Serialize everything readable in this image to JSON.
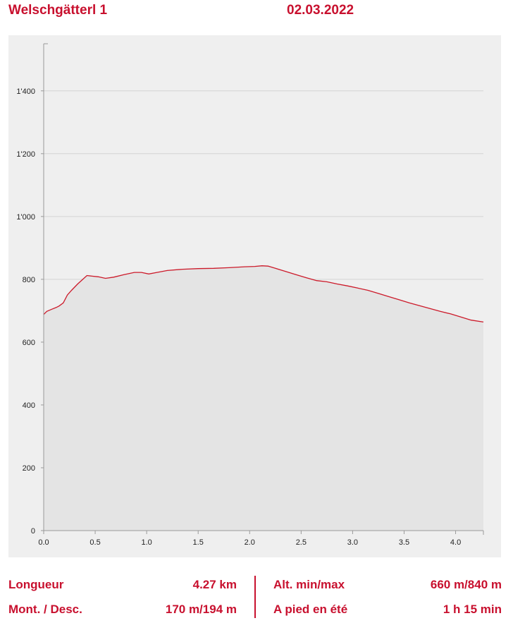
{
  "header": {
    "route_name": "Welschgätterl 1",
    "date": "02.03.2022"
  },
  "colors": {
    "accent": "#c8102e",
    "line": "#cc1a2a",
    "area_fill": "#e4e4e4",
    "plot_background": "#efefef",
    "grid": "#d3d3d3"
  },
  "chart_data": {
    "type": "area",
    "title": "",
    "xlabel": "",
    "ylabel": "",
    "xlim": [
      0,
      4.27
    ],
    "ylim": [
      0,
      1550
    ],
    "x_ticks": [
      "0.0",
      "0.5",
      "1.0",
      "1.5",
      "2.0",
      "2.5",
      "3.0",
      "3.5",
      "4.0"
    ],
    "y_ticks": [
      "0",
      "200",
      "400",
      "600",
      "800",
      "1'000",
      "1'200",
      "1'400"
    ],
    "grid": true,
    "series": [
      {
        "x": [
          0,
          0.03,
          0.08,
          0.12,
          0.15,
          0.19,
          0.23,
          0.27,
          0.33,
          0.38,
          0.42,
          0.47,
          0.53,
          0.6,
          0.68,
          0.78,
          0.88,
          0.95,
          1.02,
          1.1,
          1.2,
          1.35,
          1.5,
          1.65,
          1.8,
          1.95,
          2.05,
          2.12,
          2.18,
          2.25,
          2.35,
          2.45,
          2.55,
          2.65,
          2.75,
          2.85,
          2.95,
          3.05,
          3.15,
          3.25,
          3.35,
          3.45,
          3.55,
          3.65,
          3.75,
          3.85,
          3.95,
          4.05,
          4.15,
          4.27
        ],
        "y": [
          688,
          698,
          705,
          710,
          715,
          725,
          750,
          765,
          785,
          800,
          812,
          810,
          808,
          803,
          807,
          815,
          822,
          822,
          817,
          822,
          828,
          832,
          834,
          835,
          837,
          840,
          841,
          843,
          842,
          835,
          825,
          815,
          805,
          796,
          792,
          785,
          779,
          772,
          765,
          755,
          745,
          735,
          725,
          716,
          707,
          698,
          690,
          680,
          670,
          664
        ]
      }
    ]
  },
  "stats": {
    "length_label": "Longueur",
    "length_value": "4.27 km",
    "climb_label": "Mont. / Desc.",
    "climb_value": "170 m/194 m",
    "alt_label": "Alt. min/max",
    "alt_value": "660 m/840 m",
    "walk_label": "A pied en été",
    "walk_value": "1 h 15 min"
  }
}
